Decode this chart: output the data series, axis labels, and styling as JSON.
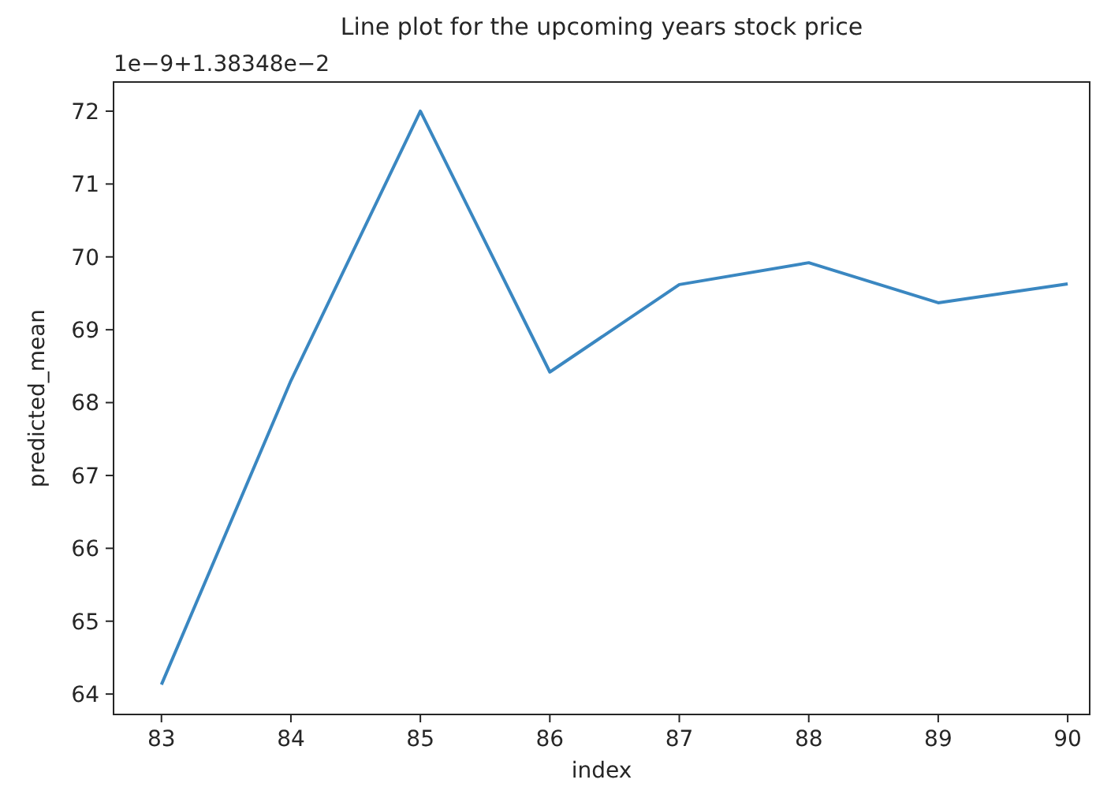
{
  "chart_data": {
    "type": "line",
    "title": "Line plot for the upcoming years stock price",
    "xlabel": "index",
    "ylabel": "predicted_mean",
    "annotations": [
      "1e−9+1.38348e−2"
    ],
    "x": [
      83,
      84,
      85,
      86,
      87,
      88,
      89,
      90
    ],
    "series": [
      {
        "color": "#3a87c1",
        "values": [
          64.13,
          68.3,
          72.0,
          68.42,
          69.62,
          69.92,
          69.37,
          69.63
        ]
      }
    ],
    "xlim": [
      82.63,
      90.17
    ],
    "xticks": [
      83,
      84,
      85,
      86,
      87,
      88,
      89,
      90
    ],
    "ylim": [
      63.72,
      72.4
    ],
    "yticks": [
      64,
      65,
      66,
      67,
      68,
      69,
      70,
      71,
      72
    ],
    "grid": false
  }
}
